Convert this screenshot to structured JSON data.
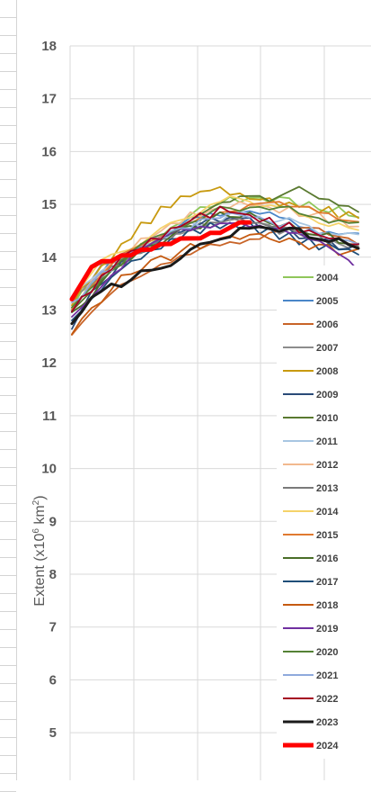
{
  "chart_data": {
    "type": "line",
    "title": "",
    "xlabel": "",
    "ylabel": "Extent (x10⁶ km²)",
    "ylabel_parts": {
      "prefix": "Extent (x10",
      "exp1": "6",
      "mid": " km",
      "exp2": "2",
      "suffix": ")"
    },
    "ylim": [
      4.2,
      18
    ],
    "yticks": [
      "18",
      "17",
      "16",
      "15",
      "14",
      "13",
      "12",
      "11",
      "10",
      "9",
      "8",
      "7",
      "6",
      "5"
    ],
    "grid": true,
    "legend_position": "right",
    "x_days": 30,
    "series": [
      {
        "name": "2004",
        "color": "#8fc65a",
        "values": [
          13.1,
          13.3,
          13.5,
          13.7,
          13.9,
          14.0,
          14.1,
          14.2,
          14.3,
          14.4,
          14.5,
          14.7,
          14.8,
          14.9,
          15.0,
          15.0,
          15.1,
          15.1,
          15.1,
          15.1,
          15.1,
          15.1,
          15.1,
          15.0,
          15.0,
          14.9,
          14.9,
          14.9,
          14.8,
          14.8
        ]
      },
      {
        "name": "2005",
        "color": "#4a86c8",
        "values": [
          13.0,
          13.3,
          13.5,
          13.7,
          13.9,
          14.0,
          14.1,
          14.2,
          14.3,
          14.4,
          14.5,
          14.6,
          14.7,
          14.7,
          14.8,
          14.8,
          14.9,
          14.9,
          14.9,
          14.8,
          14.8,
          14.7,
          14.7,
          14.6,
          14.6,
          14.5,
          14.5,
          14.4,
          14.4,
          14.4
        ]
      },
      {
        "name": "2006",
        "color": "#c86428",
        "values": [
          12.5,
          12.7,
          12.9,
          13.1,
          13.3,
          13.5,
          13.6,
          13.7,
          13.8,
          13.9,
          13.9,
          14.0,
          14.0,
          14.1,
          14.2,
          14.2,
          14.3,
          14.3,
          14.4,
          14.4,
          14.5,
          14.5,
          14.5,
          14.5,
          14.5,
          14.5,
          14.4,
          14.4,
          14.4,
          14.3
        ]
      },
      {
        "name": "2007",
        "color": "#8c8c8c",
        "values": [
          13.2,
          13.4,
          13.6,
          13.8,
          13.9,
          14.0,
          14.1,
          14.2,
          14.3,
          14.3,
          14.4,
          14.5,
          14.5,
          14.6,
          14.6,
          14.7,
          14.7,
          14.7,
          14.7,
          14.6,
          14.6,
          14.5,
          14.5,
          14.4,
          14.4,
          14.3,
          14.3,
          14.3,
          14.2,
          14.2
        ]
      },
      {
        "name": "2008",
        "color": "#c89a10",
        "values": [
          13.1,
          13.4,
          13.6,
          13.8,
          14.0,
          14.2,
          14.4,
          14.6,
          14.7,
          14.9,
          15.0,
          15.1,
          15.2,
          15.2,
          15.3,
          15.3,
          15.2,
          15.2,
          15.1,
          15.1,
          15.1,
          15.0,
          15.0,
          15.0,
          14.9,
          14.9,
          14.9,
          14.8,
          14.8,
          14.8
        ]
      },
      {
        "name": "2009",
        "color": "#2a4a78",
        "values": [
          12.7,
          13.0,
          13.3,
          13.5,
          13.7,
          13.9,
          14.0,
          14.1,
          14.2,
          14.3,
          14.4,
          14.5,
          14.6,
          14.6,
          14.7,
          14.7,
          14.8,
          14.7,
          14.7,
          14.6,
          14.6,
          14.5,
          14.5,
          14.4,
          14.4,
          14.3,
          14.3,
          14.2,
          14.2,
          14.2
        ]
      },
      {
        "name": "2010",
        "color": "#5a7a30",
        "values": [
          13.0,
          13.2,
          13.4,
          13.6,
          13.8,
          14.0,
          14.1,
          14.2,
          14.3,
          14.4,
          14.5,
          14.6,
          14.7,
          14.8,
          14.9,
          15.0,
          15.0,
          15.1,
          15.1,
          15.1,
          15.0,
          15.1,
          15.2,
          15.3,
          15.2,
          15.1,
          15.1,
          15.0,
          15.0,
          14.9
        ]
      },
      {
        "name": "2011",
        "color": "#a8c6e2",
        "values": [
          13.2,
          13.4,
          13.6,
          13.8,
          13.9,
          14.0,
          14.1,
          14.2,
          14.3,
          14.4,
          14.4,
          14.5,
          14.6,
          14.6,
          14.7,
          14.7,
          14.8,
          14.8,
          14.8,
          14.8,
          14.7,
          14.7,
          14.7,
          14.6,
          14.6,
          14.5,
          14.5,
          14.4,
          14.4,
          14.4
        ]
      },
      {
        "name": "2012",
        "color": "#f2b98e",
        "values": [
          13.1,
          13.3,
          13.5,
          13.7,
          13.9,
          14.0,
          14.2,
          14.3,
          14.4,
          14.5,
          14.6,
          14.7,
          14.8,
          14.8,
          14.9,
          14.9,
          15.0,
          15.0,
          15.0,
          15.0,
          14.9,
          14.9,
          14.9,
          14.8,
          14.8,
          14.8,
          14.7,
          14.7,
          14.6,
          14.6
        ]
      },
      {
        "name": "2013",
        "color": "#7a7a7a",
        "values": [
          13.0,
          13.2,
          13.4,
          13.6,
          13.8,
          13.9,
          14.0,
          14.1,
          14.2,
          14.3,
          14.4,
          14.5,
          14.5,
          14.6,
          14.6,
          14.7,
          14.7,
          14.7,
          14.7,
          14.6,
          14.6,
          14.6,
          14.5,
          14.5,
          14.4,
          14.4,
          14.3,
          14.3,
          14.3,
          14.2
        ]
      },
      {
        "name": "2014",
        "color": "#f5d36a",
        "values": [
          13.3,
          13.5,
          13.7,
          13.9,
          14.0,
          14.1,
          14.2,
          14.3,
          14.4,
          14.5,
          14.6,
          14.7,
          14.8,
          14.9,
          15.0,
          15.0,
          15.1,
          15.1,
          15.1,
          15.0,
          15.0,
          14.9,
          14.9,
          14.8,
          14.8,
          14.7,
          14.6,
          14.6,
          14.5,
          14.5
        ]
      },
      {
        "name": "2015",
        "color": "#e07a30",
        "values": [
          13.0,
          13.2,
          13.4,
          13.6,
          13.8,
          14.0,
          14.1,
          14.2,
          14.3,
          14.4,
          14.5,
          14.6,
          14.7,
          14.8,
          14.8,
          14.9,
          14.9,
          14.9,
          15.0,
          15.0,
          15.0,
          15.0,
          14.9,
          14.9,
          14.9,
          14.8,
          14.8,
          14.7,
          14.7,
          14.7
        ]
      },
      {
        "name": "2016",
        "color": "#4a6e28",
        "values": [
          12.9,
          13.1,
          13.3,
          13.5,
          13.7,
          13.9,
          14.0,
          14.1,
          14.2,
          14.3,
          14.4,
          14.5,
          14.6,
          14.6,
          14.7,
          14.8,
          14.8,
          14.8,
          14.8,
          14.7,
          14.7,
          14.6,
          14.6,
          14.5,
          14.5,
          14.4,
          14.4,
          14.3,
          14.3,
          14.2
        ]
      },
      {
        "name": "2017",
        "color": "#1f4e79",
        "values": [
          12.8,
          13.0,
          13.2,
          13.4,
          13.6,
          13.8,
          13.9,
          14.0,
          14.1,
          14.2,
          14.3,
          14.4,
          14.5,
          14.5,
          14.6,
          14.6,
          14.6,
          14.6,
          14.6,
          14.5,
          14.5,
          14.4,
          14.4,
          14.3,
          14.3,
          14.2,
          14.2,
          14.2,
          14.1,
          14.1
        ]
      },
      {
        "name": "2018",
        "color": "#c55a11",
        "values": [
          12.6,
          12.8,
          13.0,
          13.2,
          13.4,
          13.6,
          13.7,
          13.8,
          13.9,
          14.0,
          14.0,
          14.1,
          14.2,
          14.2,
          14.3,
          14.3,
          14.4,
          14.4,
          14.4,
          14.4,
          14.4,
          14.3,
          14.3,
          14.3,
          14.2,
          14.2,
          14.2,
          14.1,
          14.1,
          14.1
        ]
      },
      {
        "name": "2019",
        "color": "#7030a0",
        "values": [
          12.9,
          13.1,
          13.3,
          13.5,
          13.7,
          13.8,
          14.0,
          14.1,
          14.2,
          14.3,
          14.4,
          14.5,
          14.5,
          14.6,
          14.6,
          14.7,
          14.7,
          14.7,
          14.6,
          14.6,
          14.5,
          14.5,
          14.4,
          14.4,
          14.3,
          14.3,
          14.2,
          14.1,
          14.0,
          13.8
        ]
      },
      {
        "name": "2020",
        "color": "#548235",
        "values": [
          13.0,
          13.2,
          13.4,
          13.6,
          13.8,
          13.9,
          14.1,
          14.2,
          14.3,
          14.4,
          14.5,
          14.6,
          14.7,
          14.7,
          14.8,
          14.9,
          14.9,
          14.9,
          15.0,
          15.0,
          14.9,
          14.9,
          14.9,
          14.8,
          14.8,
          14.8,
          14.7,
          14.7,
          14.6,
          14.6
        ]
      },
      {
        "name": "2021",
        "color": "#8faadc",
        "values": [
          13.1,
          13.3,
          13.5,
          13.7,
          13.8,
          14.0,
          14.1,
          14.2,
          14.3,
          14.4,
          14.5,
          14.5,
          14.6,
          14.7,
          14.7,
          14.8,
          14.8,
          14.8,
          14.8,
          14.7,
          14.7,
          14.6,
          14.6,
          14.5,
          14.5,
          14.4,
          14.4,
          14.3,
          14.3,
          14.3
        ]
      },
      {
        "name": "2022",
        "color": "#a50021",
        "values": [
          13.0,
          13.2,
          13.4,
          13.6,
          13.8,
          14.0,
          14.1,
          14.2,
          14.3,
          14.4,
          14.5,
          14.6,
          14.7,
          14.8,
          14.8,
          14.9,
          14.9,
          14.8,
          14.8,
          14.7,
          14.7,
          14.6,
          14.6,
          14.5,
          14.5,
          14.4,
          14.4,
          14.3,
          14.3,
          14.2
        ]
      },
      {
        "name": "2023",
        "color": "#1a1a1a",
        "values": [
          12.8,
          13.0,
          13.2,
          13.3,
          13.5,
          13.5,
          13.6,
          13.7,
          13.7,
          13.8,
          13.9,
          14.0,
          14.1,
          14.2,
          14.3,
          14.4,
          14.4,
          14.5,
          14.5,
          14.6,
          14.6,
          14.5,
          14.5,
          14.5,
          14.4,
          14.4,
          14.3,
          14.3,
          14.2,
          14.2
        ]
      },
      {
        "name": "2024",
        "color": "#ff0000",
        "values": [
          13.2,
          13.5,
          13.8,
          13.9,
          13.9,
          14.0,
          14.0,
          14.1,
          14.1,
          14.2,
          14.2,
          14.3,
          14.3,
          14.3,
          14.4,
          14.4,
          14.5,
          14.6,
          14.6
        ]
      }
    ]
  }
}
